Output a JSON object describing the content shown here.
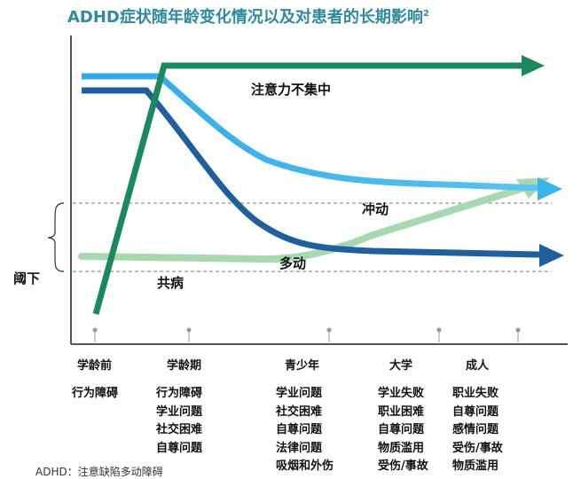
{
  "title": "ADHD症状随年龄变化情况以及对患者的长期影响",
  "title_superscript": "2",
  "labels": {
    "inattention": "注意力不集中",
    "impulsivity": "冲动",
    "hyperactivity": "多动",
    "comorbidity": "共病",
    "threshold": "阈下"
  },
  "stages": [
    "学龄前",
    "学龄期",
    "青少年",
    "大学",
    "成人"
  ],
  "problems": [
    [
      "行为障碍"
    ],
    [
      "行为障碍",
      "学业问题",
      "社交困难",
      "自尊问题"
    ],
    [
      "学业问题",
      "社交困难",
      "自尊问题",
      "法律问题",
      "吸烟和外伤"
    ],
    [
      "学业失败",
      "职业困难",
      "自尊问题",
      "物质滥用",
      "受伤/事故"
    ],
    [
      "职业失败",
      "自尊问题",
      "感情问题",
      "受伤/事故",
      "物质滥用"
    ]
  ],
  "footnote": "ADHD：注意缺陷多动障碍",
  "colors": {
    "title": "#2e8b9e",
    "inattention": "#1a8a5e",
    "impulsivity": "#2ea9e6",
    "hyperactivity": "#1f5f9e",
    "comorbidity": "#a8d8b0",
    "axis": "#555555"
  }
}
